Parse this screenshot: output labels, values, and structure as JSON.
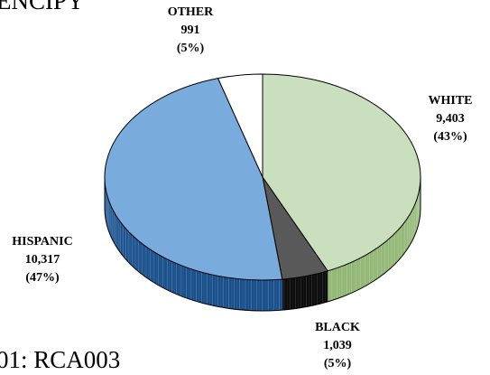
{
  "header_partial": "ENCIPY",
  "footer_partial": "01: RCA003",
  "chart_data": {
    "type": "pie",
    "title": "",
    "slices": [
      {
        "label": "WHITE",
        "value": 9403,
        "value_text": "9,403",
        "percent_text": "(43%)",
        "color": "#cadfbd",
        "side_color": "#92b774"
      },
      {
        "label": "BLACK",
        "value": 1039,
        "value_text": "1,039",
        "percent_text": "(5%)",
        "color": "#595959",
        "side_color": "#0d0d0d"
      },
      {
        "label": "HISPANIC",
        "value": 10317,
        "value_text": "10,317",
        "percent_text": "(47%)",
        "color": "#7aabdd",
        "side_color": "#1b4f89"
      },
      {
        "label": "OTHER",
        "value": 991,
        "value_text": "991",
        "percent_text": "(5%)",
        "color": "#ffffff",
        "side_color": "#cfcfcf"
      }
    ],
    "style": "3d-tilted",
    "legend": "none"
  }
}
